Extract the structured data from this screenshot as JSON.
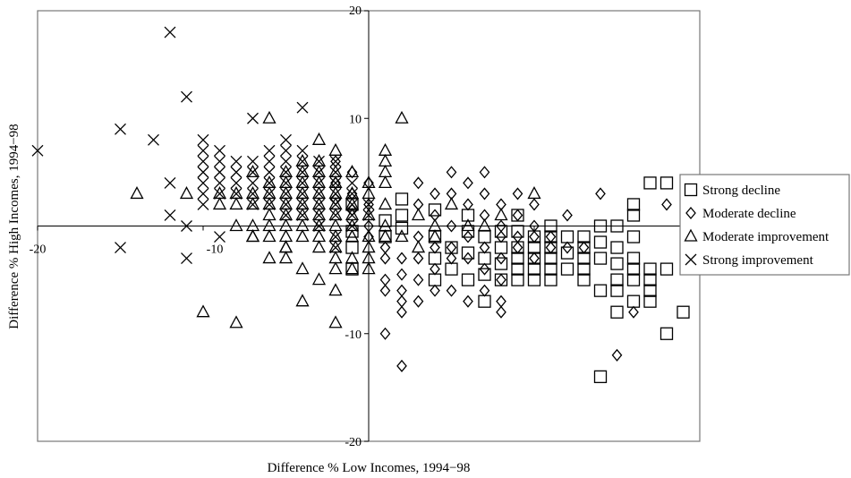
{
  "chart_data": {
    "type": "scatter",
    "title": "",
    "xlabel": "Difference % Low Incomes, 1994−98",
    "ylabel": "Difference % High Incomes, 1994−98",
    "xlim": [
      -20,
      20
    ],
    "ylim": [
      -20,
      20
    ],
    "x_tick_labels": [
      "-20",
      "-10"
    ],
    "y_tick_labels": [
      "20",
      "10",
      "-10",
      "-20"
    ],
    "grid": false,
    "legend_position": "right",
    "series": [
      {
        "name": "Strong decline",
        "marker": "square",
        "points": [
          [
            -1,
            -4
          ],
          [
            -1,
            2
          ],
          [
            -1,
            -0.5
          ],
          [
            -1,
            -2
          ],
          [
            1,
            0.5
          ],
          [
            1,
            -1
          ],
          [
            2,
            2.5
          ],
          [
            2,
            1
          ],
          [
            2,
            -0.2
          ],
          [
            4,
            1.5
          ],
          [
            4,
            -1
          ],
          [
            4,
            -3
          ],
          [
            4,
            -5
          ],
          [
            5,
            -2
          ],
          [
            5,
            -4
          ],
          [
            6,
            1
          ],
          [
            6,
            -0.5
          ],
          [
            6,
            -2.5
          ],
          [
            6,
            -5
          ],
          [
            7,
            -1
          ],
          [
            7,
            -3
          ],
          [
            7,
            -4.5
          ],
          [
            7,
            -7
          ],
          [
            8,
            -0.5
          ],
          [
            8,
            -2
          ],
          [
            8,
            -3.5
          ],
          [
            8,
            -5
          ],
          [
            9,
            1
          ],
          [
            9,
            -0.5
          ],
          [
            9,
            -2
          ],
          [
            9,
            -3
          ],
          [
            9,
            -4
          ],
          [
            9,
            -5
          ],
          [
            10,
            -1
          ],
          [
            10,
            -2
          ],
          [
            10,
            -3
          ],
          [
            10,
            -4
          ],
          [
            10,
            -5
          ],
          [
            11,
            0
          ],
          [
            11,
            -1
          ],
          [
            11,
            -2
          ],
          [
            11,
            -3
          ],
          [
            11,
            -4
          ],
          [
            11,
            -5
          ],
          [
            12,
            -1
          ],
          [
            12,
            -2.5
          ],
          [
            12,
            -4
          ],
          [
            13,
            -1
          ],
          [
            13,
            -2
          ],
          [
            13,
            -3
          ],
          [
            13,
            -4
          ],
          [
            13,
            -5
          ],
          [
            14,
            0
          ],
          [
            14,
            -1.5
          ],
          [
            14,
            -3
          ],
          [
            14,
            -6
          ],
          [
            14,
            -14
          ],
          [
            15,
            0
          ],
          [
            15,
            -2
          ],
          [
            15,
            -3.5
          ],
          [
            15,
            -5
          ],
          [
            15,
            -6
          ],
          [
            15,
            -8
          ],
          [
            16,
            -1
          ],
          [
            16,
            -3
          ],
          [
            16,
            -4
          ],
          [
            16,
            -5
          ],
          [
            16,
            -7
          ],
          [
            16,
            1
          ],
          [
            16,
            2
          ],
          [
            17,
            -5
          ],
          [
            17,
            -6
          ],
          [
            17,
            -7
          ],
          [
            17,
            -4
          ],
          [
            18,
            -10
          ],
          [
            18,
            -4
          ],
          [
            17,
            4
          ],
          [
            18,
            4
          ],
          [
            19,
            -8
          ],
          [
            20,
            -2
          ],
          [
            22,
            0
          ],
          [
            22,
            -2
          ]
        ]
      },
      {
        "name": "Moderate decline",
        "marker": "diamond",
        "points": [
          [
            -2,
            6
          ],
          [
            -2,
            4
          ],
          [
            -2,
            2.5
          ],
          [
            -1,
            5
          ],
          [
            -1,
            3
          ],
          [
            -1,
            1.5
          ],
          [
            0,
            4
          ],
          [
            0,
            2
          ],
          [
            0,
            0
          ],
          [
            0,
            -1
          ],
          [
            1,
            -2
          ],
          [
            1,
            -3
          ],
          [
            1,
            -5
          ],
          [
            1,
            -6
          ],
          [
            1,
            -10
          ],
          [
            2,
            -3
          ],
          [
            2,
            -4.5
          ],
          [
            2,
            -6
          ],
          [
            2,
            -7
          ],
          [
            2,
            -8
          ],
          [
            3,
            4
          ],
          [
            3,
            2
          ],
          [
            3,
            -1
          ],
          [
            3,
            -3
          ],
          [
            3,
            -5
          ],
          [
            3,
            -7
          ],
          [
            4,
            3
          ],
          [
            4,
            1
          ],
          [
            4,
            -2
          ],
          [
            4,
            -4
          ],
          [
            4,
            -6
          ],
          [
            5,
            5
          ],
          [
            5,
            3
          ],
          [
            5,
            0
          ],
          [
            5,
            -2
          ],
          [
            5,
            -3
          ],
          [
            5,
            -6
          ],
          [
            6,
            4
          ],
          [
            6,
            2
          ],
          [
            6,
            -1
          ],
          [
            6,
            -3
          ],
          [
            6,
            -7
          ],
          [
            7,
            5
          ],
          [
            7,
            3
          ],
          [
            7,
            1
          ],
          [
            7,
            -2
          ],
          [
            7,
            -4
          ],
          [
            7,
            -6
          ],
          [
            8,
            2
          ],
          [
            8,
            0
          ],
          [
            8,
            -1
          ],
          [
            8,
            -3
          ],
          [
            8,
            -5
          ],
          [
            8,
            -7
          ],
          [
            8,
            -8
          ],
          [
            9,
            3
          ],
          [
            9,
            1
          ],
          [
            9,
            -1
          ],
          [
            9,
            -2
          ],
          [
            10,
            2
          ],
          [
            10,
            0
          ],
          [
            10,
            -1
          ],
          [
            10,
            -3
          ],
          [
            11,
            -1
          ],
          [
            11,
            -2
          ],
          [
            12,
            1
          ],
          [
            12,
            -2
          ],
          [
            13,
            -2
          ],
          [
            14,
            3
          ],
          [
            15,
            -12
          ],
          [
            16,
            -8
          ],
          [
            18,
            2
          ],
          [
            2,
            -13
          ]
        ]
      },
      {
        "name": "Moderate improvement",
        "marker": "triangle",
        "points": [
          [
            -14,
            3
          ],
          [
            -11,
            3
          ],
          [
            -10,
            -8
          ],
          [
            -9,
            2
          ],
          [
            -8,
            -9
          ],
          [
            -7,
            -1
          ],
          [
            -6,
            -3
          ],
          [
            -6,
            10
          ],
          [
            -5,
            -2
          ],
          [
            -5,
            -3
          ],
          [
            -4,
            -4
          ],
          [
            -4,
            -7
          ],
          [
            -3,
            -2
          ],
          [
            -3,
            -5
          ],
          [
            -3,
            8
          ],
          [
            -2,
            -6
          ],
          [
            -2,
            -9
          ],
          [
            -1,
            5
          ],
          [
            -1,
            3
          ],
          [
            1,
            6
          ],
          [
            1,
            4
          ],
          [
            0,
            3
          ],
          [
            0,
            1
          ],
          [
            0,
            -1
          ],
          [
            0,
            -2
          ],
          [
            0,
            -3
          ],
          [
            0,
            -4
          ],
          [
            -1,
            -1
          ],
          [
            -1,
            -3
          ],
          [
            2,
            10
          ],
          [
            1,
            7
          ],
          [
            1,
            5
          ],
          [
            0,
            4
          ],
          [
            -8,
            2
          ],
          [
            -8,
            3
          ],
          [
            -7,
            2
          ],
          [
            -7,
            3
          ],
          [
            -6,
            1
          ],
          [
            -6,
            2
          ],
          [
            -6,
            3
          ],
          [
            -6,
            4
          ],
          [
            -5,
            0
          ],
          [
            -5,
            1
          ],
          [
            -5,
            2
          ],
          [
            -5,
            3
          ],
          [
            -5,
            4
          ],
          [
            -4,
            0
          ],
          [
            -4,
            1
          ],
          [
            -4,
            2
          ],
          [
            -4,
            3
          ],
          [
            -4,
            4
          ],
          [
            -4,
            5
          ],
          [
            -3,
            0
          ],
          [
            -3,
            1
          ],
          [
            -3,
            2
          ],
          [
            -3,
            3
          ],
          [
            -3,
            4
          ],
          [
            -3,
            5
          ],
          [
            -2,
            0
          ],
          [
            -2,
            1
          ],
          [
            -2,
            2
          ],
          [
            -2,
            3
          ],
          [
            -2,
            4
          ],
          [
            -2,
            5
          ],
          [
            -1,
            0
          ],
          [
            -1,
            1
          ],
          [
            -1,
            2
          ],
          [
            -1,
            -4
          ],
          [
            -7,
            0
          ],
          [
            -7,
            -1
          ],
          [
            -6,
            0
          ],
          [
            -5,
            -1
          ],
          [
            -4,
            -1
          ],
          [
            -3,
            -1
          ],
          [
            -2,
            -1
          ],
          [
            -2,
            -2
          ],
          [
            -2,
            -3
          ],
          [
            -2,
            -4
          ],
          [
            -8,
            0
          ],
          [
            -9,
            3
          ],
          [
            -7,
            5
          ],
          [
            -5,
            5
          ],
          [
            -4,
            6
          ],
          [
            -3,
            6
          ],
          [
            -2,
            7
          ],
          [
            1,
            2
          ],
          [
            1,
            0
          ],
          [
            1,
            -1
          ],
          [
            2,
            -1
          ],
          [
            3,
            1
          ],
          [
            3,
            -2
          ],
          [
            4,
            0
          ],
          [
            4,
            -1
          ],
          [
            5,
            2
          ],
          [
            6,
            0
          ],
          [
            7,
            0
          ],
          [
            8,
            1
          ],
          [
            10,
            3
          ],
          [
            -6,
            -1
          ],
          [
            -5,
            -2
          ]
        ]
      },
      {
        "name": "Strong improvement",
        "marker": "x",
        "points": [
          [
            -20,
            7
          ],
          [
            -15,
            9
          ],
          [
            -15,
            -2
          ],
          [
            -13,
            8
          ],
          [
            -12,
            18
          ],
          [
            -12,
            4
          ],
          [
            -12,
            1
          ],
          [
            -11,
            12
          ],
          [
            -11,
            0
          ],
          [
            -11,
            -3
          ],
          [
            -10,
            8
          ],
          [
            -10,
            7
          ],
          [
            -10,
            6
          ],
          [
            -10,
            5
          ],
          [
            -10,
            4
          ],
          [
            -10,
            3
          ],
          [
            -10,
            2
          ],
          [
            -9,
            7
          ],
          [
            -9,
            6
          ],
          [
            -9,
            5
          ],
          [
            -9,
            4
          ],
          [
            -9,
            3
          ],
          [
            -9,
            -1
          ],
          [
            -8,
            6
          ],
          [
            -8,
            5
          ],
          [
            -8,
            4
          ],
          [
            -8,
            3
          ],
          [
            -7,
            6
          ],
          [
            -7,
            5
          ],
          [
            -7,
            4
          ],
          [
            -7,
            3
          ],
          [
            -7,
            10
          ],
          [
            -6,
            7
          ],
          [
            -6,
            6
          ],
          [
            -6,
            5
          ],
          [
            -6,
            4
          ],
          [
            -6,
            3
          ],
          [
            -5,
            8
          ],
          [
            -5,
            7
          ],
          [
            -5,
            6
          ],
          [
            -5,
            5
          ],
          [
            -5,
            4
          ],
          [
            -5,
            3
          ],
          [
            -5,
            2
          ],
          [
            -4,
            7
          ],
          [
            -4,
            6
          ],
          [
            -4,
            5
          ],
          [
            -4,
            4
          ],
          [
            -4,
            3
          ],
          [
            -4,
            2
          ],
          [
            -4,
            11
          ],
          [
            -3,
            6
          ],
          [
            -3,
            5
          ],
          [
            -3,
            4
          ],
          [
            -3,
            3
          ],
          [
            -3,
            2
          ],
          [
            -3,
            1
          ],
          [
            -2,
            6
          ],
          [
            -2,
            5
          ],
          [
            -2,
            4
          ],
          [
            -2,
            3
          ],
          [
            -2,
            2
          ],
          [
            -2,
            1
          ],
          [
            -2,
            -1
          ],
          [
            -2,
            -2
          ],
          [
            -1,
            4
          ],
          [
            -1,
            3
          ],
          [
            -1,
            2
          ],
          [
            -1,
            1
          ],
          [
            -1,
            0
          ],
          [
            0,
            2
          ],
          [
            0,
            1
          ],
          [
            -3,
            0
          ],
          [
            -4,
            1
          ],
          [
            -5,
            1
          ],
          [
            -6,
            2
          ],
          [
            -7,
            2
          ]
        ]
      }
    ]
  }
}
